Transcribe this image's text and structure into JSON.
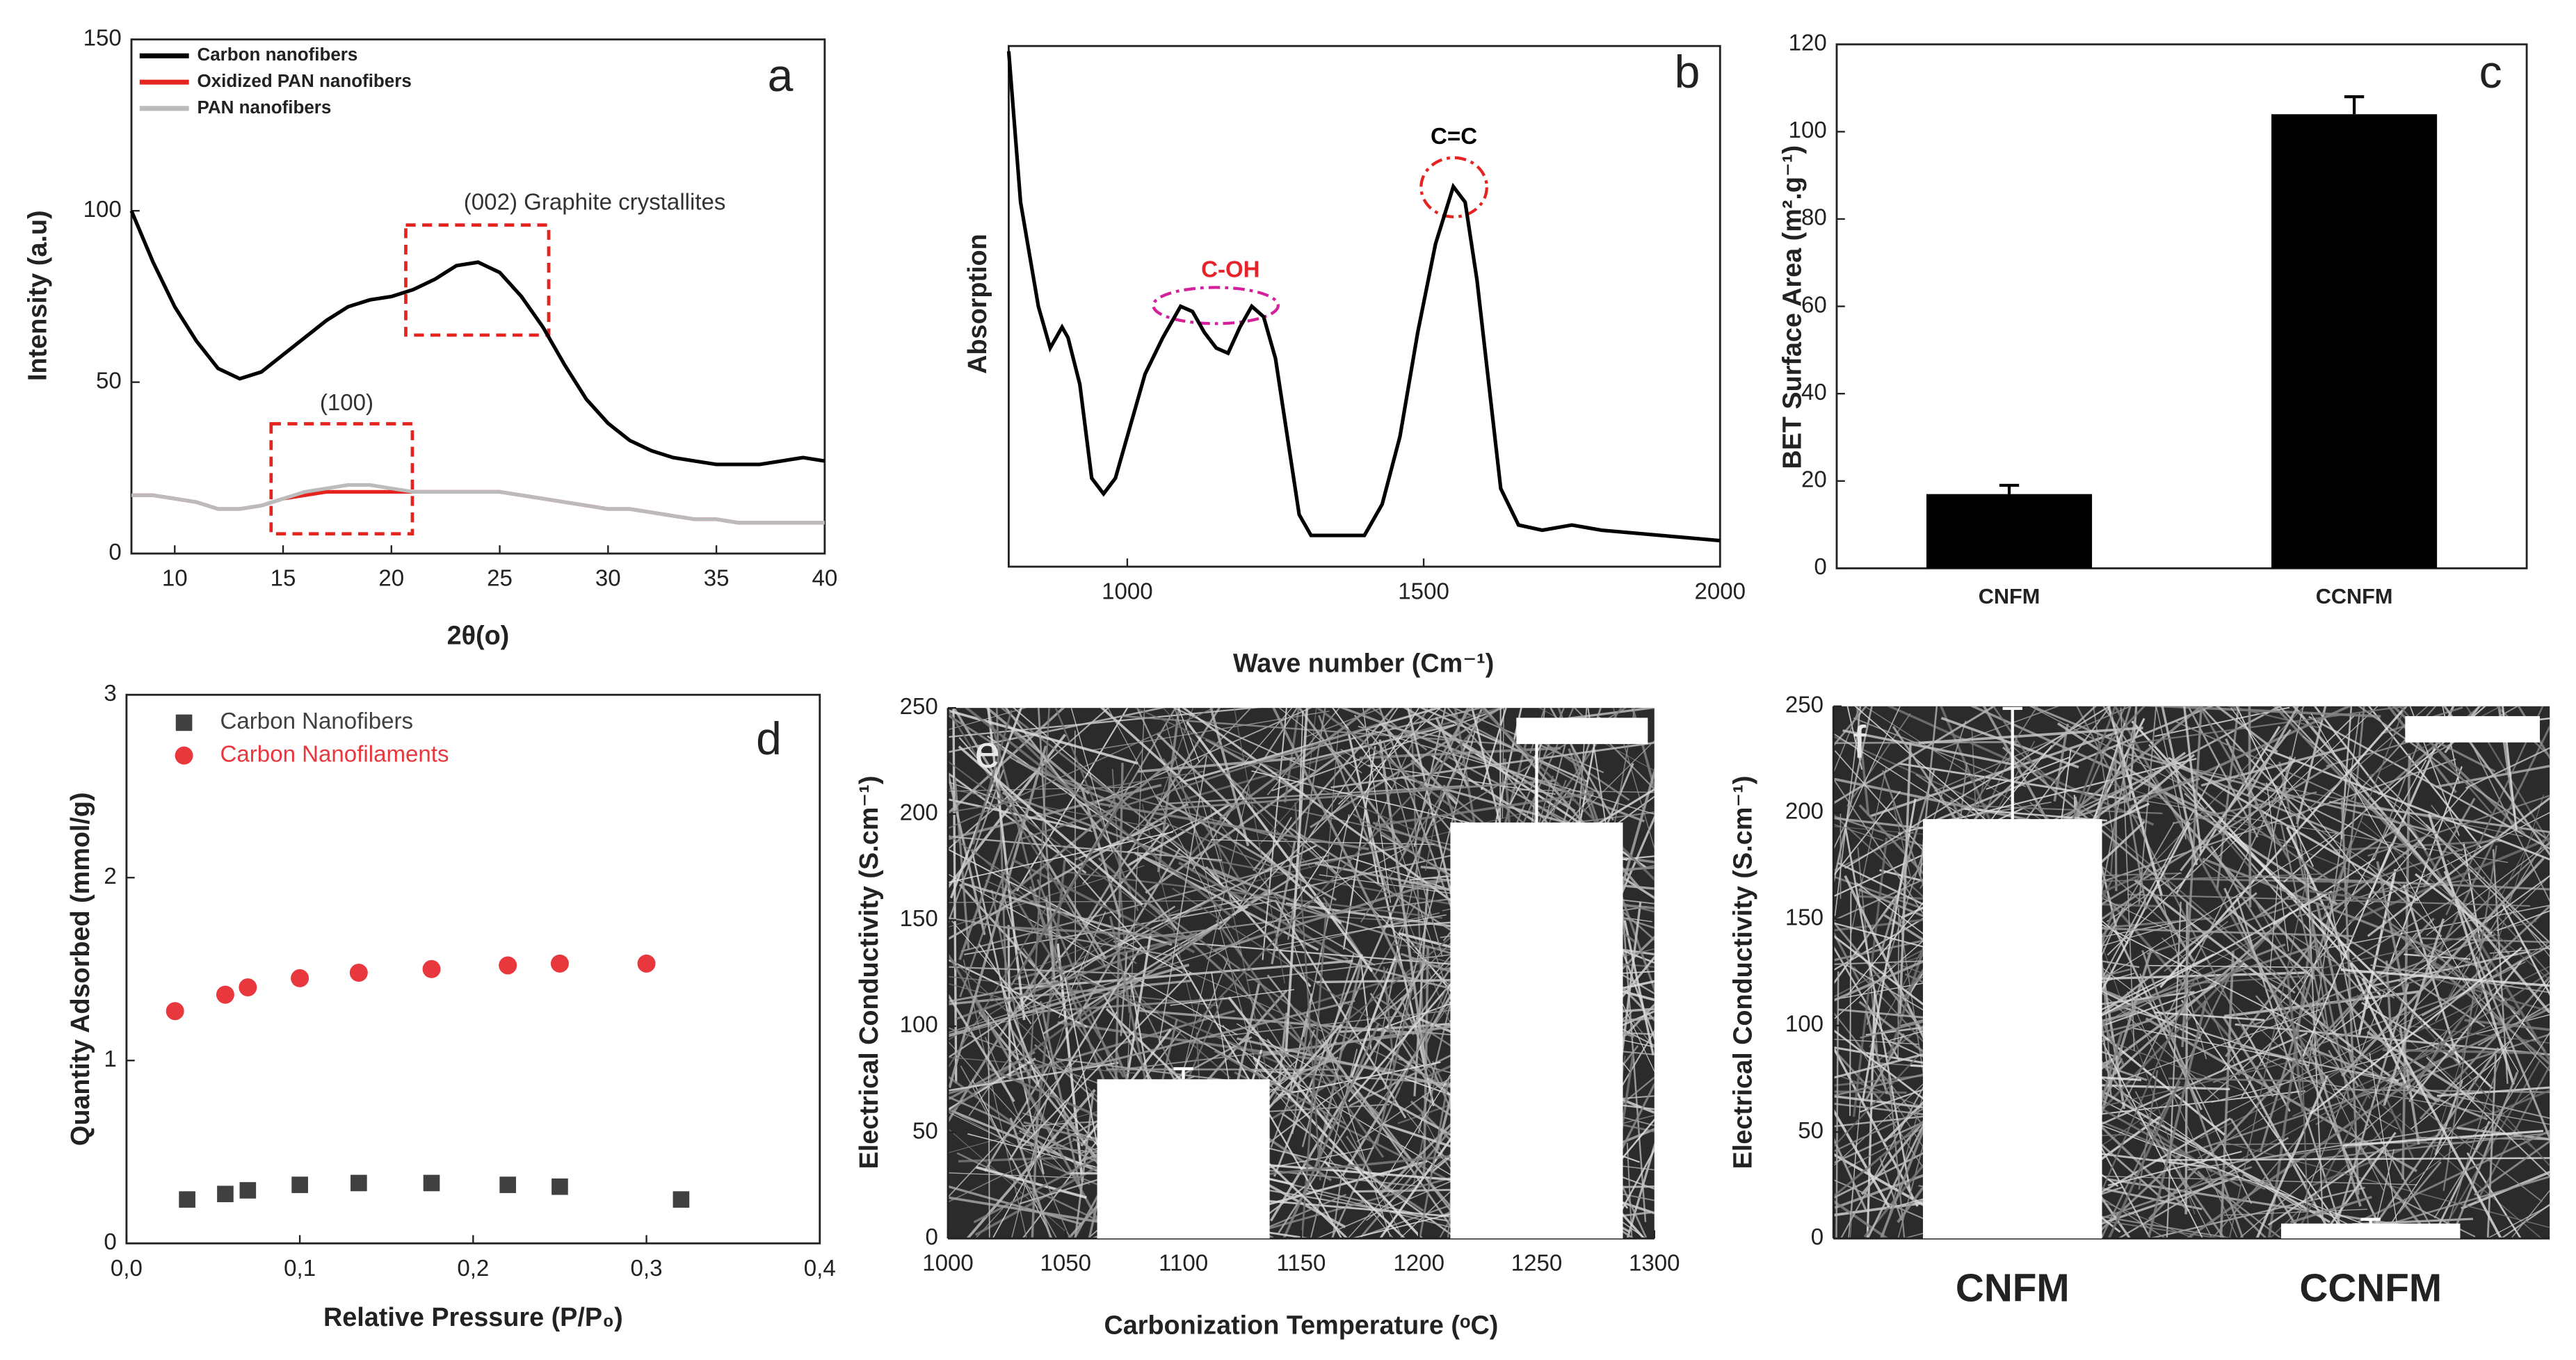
{
  "chart_data": [
    {
      "type": "line",
      "label": "a",
      "xlabel": "2θ(o)",
      "ylabel": "Intensity (a.u)",
      "xlim": [
        8,
        40
      ],
      "xticks": [
        10,
        15,
        20,
        25,
        30,
        35,
        40
      ],
      "ylim": [
        0,
        150
      ],
      "yticks": [
        0,
        50,
        100,
        150
      ],
      "legend": "upper left",
      "annotations": [
        {
          "text": "(002) Graphite crystallites",
          "color": "#333333"
        },
        {
          "text": "(100)",
          "color": "#333333"
        }
      ],
      "x": [
        8,
        9,
        10,
        11,
        12,
        13,
        14,
        15,
        16,
        17,
        18,
        19,
        20,
        21,
        22,
        23,
        24,
        25,
        26,
        27,
        28,
        29,
        30,
        31,
        32,
        33,
        34,
        35,
        36,
        37,
        38,
        39,
        40
      ],
      "series": [
        {
          "name": "Carbon nanofibers",
          "color": "#000000",
          "values": [
            100,
            85,
            72,
            62,
            54,
            51,
            53,
            58,
            63,
            68,
            72,
            74,
            75,
            77,
            80,
            84,
            85,
            82,
            75,
            66,
            55,
            45,
            38,
            33,
            30,
            28,
            27,
            26,
            26,
            26,
            27,
            28,
            27
          ]
        },
        {
          "name": "Oxidized PAN nanofibers",
          "color": "#e52420",
          "values": [
            17,
            17,
            16,
            15,
            13,
            13,
            14,
            16,
            17,
            18,
            18,
            18,
            18,
            18,
            18,
            18,
            18,
            18,
            17,
            16,
            15,
            14,
            13,
            13,
            12,
            11,
            10,
            10,
            9,
            9,
            9,
            9,
            9
          ]
        },
        {
          "name": "PAN nanofibers",
          "color": "#bbbbbb",
          "values": [
            17,
            17,
            16,
            15,
            13,
            13,
            14,
            16,
            18,
            19,
            20,
            20,
            19,
            18,
            18,
            18,
            18,
            18,
            17,
            16,
            15,
            14,
            13,
            13,
            12,
            11,
            10,
            10,
            9,
            9,
            9,
            9,
            9
          ]
        }
      ]
    },
    {
      "type": "line",
      "label": "b",
      "xlabel": "Wave number (Cm⁻¹)",
      "ylabel": "Absorption",
      "xlim": [
        800,
        2000
      ],
      "xticks": [
        1000,
        1500,
        2000
      ],
      "ylim": [
        0,
        100
      ],
      "annotations": [
        {
          "text": "C-OH",
          "color": "#e5252a"
        },
        {
          "text": "C=C",
          "color": "#000000"
        }
      ],
      "x": [
        800,
        820,
        850,
        870,
        890,
        900,
        920,
        940,
        960,
        980,
        1000,
        1030,
        1060,
        1090,
        1110,
        1130,
        1150,
        1170,
        1190,
        1210,
        1230,
        1250,
        1270,
        1290,
        1310,
        1330,
        1370,
        1400,
        1430,
        1460,
        1490,
        1520,
        1550,
        1570,
        1590,
        1610,
        1630,
        1660,
        1700,
        1750,
        1800,
        1900,
        2000
      ],
      "series": [
        {
          "name": null,
          "color": "#000000",
          "values": [
            99,
            70,
            50,
            42,
            46,
            44,
            35,
            17,
            14,
            17,
            25,
            37,
            44,
            50,
            49,
            45,
            42,
            41,
            46,
            50,
            48,
            40,
            25,
            10,
            6,
            6,
            6,
            6,
            12,
            25,
            45,
            62,
            73,
            70,
            55,
            35,
            15,
            8,
            7,
            8,
            7,
            6,
            5
          ]
        }
      ]
    },
    {
      "type": "bar",
      "label": "c",
      "ylabel": "BET Surface Area (m².g⁻¹)",
      "categories": [
        "CNFM",
        "CCNFM"
      ],
      "values": [
        17,
        104
      ],
      "errors": [
        2,
        4
      ],
      "color": "#000000",
      "error_color": "#000000",
      "ylim": [
        0,
        120
      ],
      "yticks": [
        0,
        20,
        40,
        60,
        80,
        100,
        120
      ]
    },
    {
      "type": "scatter",
      "label": "d",
      "xlabel": "Relative Pressure (P/P₀)",
      "ylabel": "Quantity Adsorbed (mmol/g)",
      "xlim": [
        0,
        0.4
      ],
      "xticks": [
        {
          "value": 0,
          "label": "0,0"
        },
        {
          "value": 0.1,
          "label": "0,1"
        },
        {
          "value": 0.2,
          "label": "0,2"
        },
        {
          "value": 0.3,
          "label": "0,3"
        },
        {
          "value": 0.4,
          "label": "0,4"
        }
      ],
      "ylim": [
        0,
        3
      ],
      "yticks": [
        0,
        1,
        2,
        3
      ],
      "legend": "upper left",
      "series": [
        {
          "name": "Carbon Nanofibers",
          "color": "#404040",
          "marker": "square",
          "x": [
            0.035,
            0.057,
            0.07,
            0.1,
            0.134,
            0.176,
            0.22,
            0.25,
            0.32
          ],
          "values": [
            0.24,
            0.27,
            0.29,
            0.32,
            0.33,
            0.33,
            0.32,
            0.31,
            0.24
          ]
        },
        {
          "name": "Carbon Nanofilaments",
          "color": "#e8383d",
          "marker": "circle",
          "x": [
            0.028,
            0.057,
            0.07,
            0.1,
            0.134,
            0.176,
            0.22,
            0.25,
            0.3
          ],
          "values": [
            1.27,
            1.36,
            1.4,
            1.45,
            1.48,
            1.5,
            1.52,
            1.53,
            1.53
          ]
        }
      ]
    },
    {
      "type": "bar",
      "label": "e",
      "xlabel": "Carbonization Temperature (ᵒC)",
      "ylabel": "Electrical Conductivity (S.cm⁻¹)",
      "xlim": [
        1000,
        1300
      ],
      "xticks": [
        1000,
        1050,
        1100,
        1150,
        1200,
        1250,
        1300
      ],
      "x": [
        1100,
        1250
      ],
      "values": [
        75,
        196
      ],
      "errors": [
        5,
        45
      ],
      "color": "#ffffff",
      "error_color": "#ffffff",
      "ylim": [
        0,
        250
      ],
      "yticks": [
        0,
        50,
        100,
        150,
        200,
        250
      ]
    },
    {
      "type": "bar",
      "label": "f",
      "ylabel": "Electrical Conductivity (S.cm⁻¹)",
      "categories": [
        "CNFM",
        "CCNFM"
      ],
      "values": [
        197,
        7
      ],
      "errors": [
        52,
        2
      ],
      "color": "#ffffff",
      "error_color": "#ffffff",
      "ylim": [
        0,
        250
      ],
      "yticks": [
        0,
        50,
        100,
        150,
        200,
        250
      ]
    }
  ]
}
